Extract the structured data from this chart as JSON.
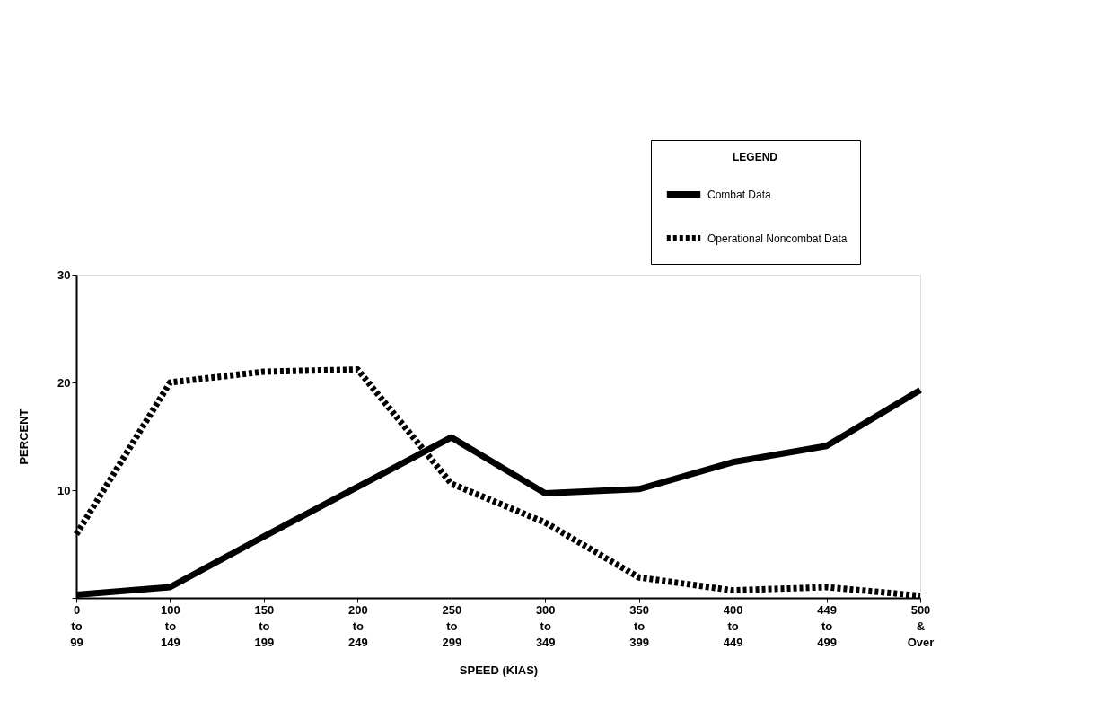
{
  "chart_data": {
    "type": "line",
    "categories": [
      "0\nto\n99",
      "100\nto\n149",
      "150\nto\n199",
      "200\nto\n249",
      "250\nto\n299",
      "300\nto\n349",
      "350\nto\n399",
      "400\nto\n449",
      "449\nto\n499",
      "500\n&\nOver"
    ],
    "series": [
      {
        "name": "Combat Data",
        "color": "#000000",
        "line_style": "solid",
        "values": [
          0.3,
          1.0,
          5.7,
          10.3,
          14.9,
          9.7,
          10.1,
          12.6,
          14.1,
          19.3
        ]
      },
      {
        "name": "Operational Noncombat Data",
        "color": "#000000",
        "line_style": "dotted",
        "values": [
          5.9,
          20.0,
          21.0,
          21.2,
          10.6,
          7.0,
          1.9,
          0.7,
          1.0,
          0.2
        ]
      }
    ],
    "xlabel": "SPEED (KIAS)",
    "ylabel": "PERCENT",
    "legend_title": "LEGEND",
    "ylim": [
      0,
      30
    ],
    "yticks": [
      {
        "value": 0,
        "label": null
      },
      10,
      20,
      30
    ],
    "grid": false,
    "legend": "top right",
    "marker": "none"
  }
}
